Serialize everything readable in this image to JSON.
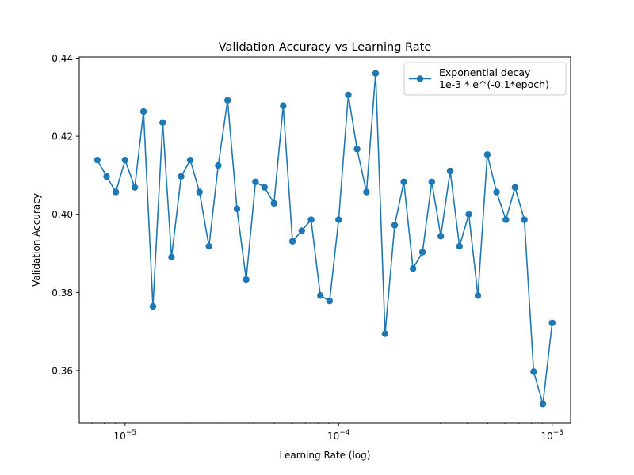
{
  "chart_data": {
    "type": "line",
    "title": "Validation Accuracy vs Learning Rate",
    "xlabel": "Learning Rate (log)",
    "ylabel": "Validation Accuracy",
    "xscale": "log",
    "xlim": [
      6.1e-06,
      0.00122
    ],
    "ylim": [
      0.3466,
      0.4403
    ],
    "xticks": [
      {
        "value": 1e-05,
        "base": "10",
        "exp": "−5"
      },
      {
        "value": 0.0001,
        "base": "10",
        "exp": "−4"
      },
      {
        "value": 0.001,
        "base": "10",
        "exp": "−3"
      }
    ],
    "yticks": [
      {
        "value": 0.36,
        "label": "0.36"
      },
      {
        "value": 0.38,
        "label": "0.38"
      },
      {
        "value": 0.4,
        "label": "0.40"
      },
      {
        "value": 0.42,
        "label": "0.42"
      },
      {
        "value": 0.44,
        "label": "0.44"
      }
    ],
    "grid": false,
    "legend_position": "top-right",
    "series": [
      {
        "name": "Exponential decay\n1e-3 * e^(-0.1*epoch)",
        "legend_lines": [
          "Exponential decay",
          "1e-3 * e^(-0.1*epoch)"
        ],
        "color": "#1f77b4",
        "marker": "circle",
        "x": [
          7.41e-06,
          8.19e-06,
          9.05e-06,
          1e-05,
          1.11e-05,
          1.22e-05,
          1.35e-05,
          1.5e-05,
          1.65e-05,
          1.83e-05,
          2.02e-05,
          2.23e-05,
          2.47e-05,
          2.73e-05,
          3.02e-05,
          3.34e-05,
          3.69e-05,
          4.08e-05,
          4.5e-05,
          4.98e-05,
          5.5e-05,
          6.08e-05,
          6.72e-05,
          7.43e-05,
          8.21e-05,
          9.07e-05,
          0.0001,
          0.000111,
          0.000122,
          0.000135,
          0.000149,
          0.000165,
          0.000183,
          0.000202,
          0.000223,
          0.000247,
          0.000273,
          0.000301,
          0.000333,
          0.000368,
          0.000407,
          0.000449,
          0.000497,
          0.000549,
          0.000607,
          0.00067,
          0.000741,
          0.000819,
          0.000905,
          0.001
        ],
        "y": [
          0.4139,
          0.4097,
          0.4057,
          0.4139,
          0.4069,
          0.4263,
          0.3764,
          0.4235,
          0.389,
          0.4097,
          0.4139,
          0.4057,
          0.3918,
          0.4125,
          0.4292,
          0.4014,
          0.3833,
          0.4083,
          0.4069,
          0.4028,
          0.4278,
          0.3931,
          0.3958,
          0.3986,
          0.3792,
          0.3778,
          0.3986,
          0.4306,
          0.4167,
          0.4057,
          0.4361,
          0.3694,
          0.3972,
          0.4083,
          0.3861,
          0.3903,
          0.4083,
          0.3944,
          0.4111,
          0.3918,
          0.4,
          0.3792,
          0.4153,
          0.4057,
          0.3986,
          0.4069,
          0.3986,
          0.3597,
          0.3514,
          0.3722
        ]
      }
    ]
  }
}
